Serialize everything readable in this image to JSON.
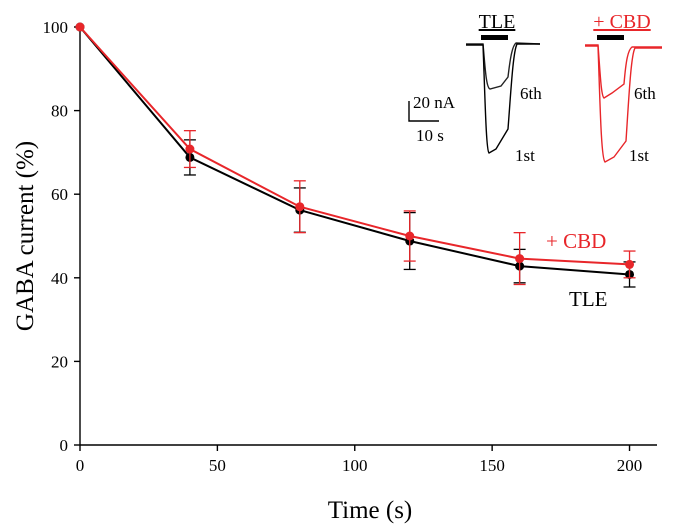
{
  "chart_data": {
    "type": "line",
    "xlabel": "Time (s)",
    "ylabel": "GABA current (%)",
    "xlim": [
      0,
      210
    ],
    "ylim": [
      0,
      100
    ],
    "x_ticks": [
      0,
      50,
      100,
      150,
      200
    ],
    "y_ticks": [
      0,
      20,
      40,
      60,
      80,
      100
    ],
    "x": [
      0,
      40,
      80,
      120,
      160,
      200
    ],
    "series": [
      {
        "name": "TLE",
        "color": "#000000",
        "values": [
          100,
          68.8,
          56.2,
          48.8,
          42.8,
          40.8
        ],
        "error": [
          0,
          4.2,
          5.3,
          6.8,
          4.0,
          3.0
        ],
        "label": "TLE"
      },
      {
        "name": "+ CBD",
        "color": "#e8262a",
        "values": [
          100,
          70.8,
          57.0,
          50.0,
          44.6,
          43.2
        ],
        "error": [
          0,
          4.4,
          6.2,
          6.0,
          6.2,
          3.2
        ],
        "label": "+ CBD"
      }
    ],
    "inset": {
      "tle_title": "TLE",
      "cbd_title": "+ CBD",
      "scale_current": "20 nA",
      "scale_time": "10 s",
      "trace_6th": "6th",
      "trace_1st": "1st"
    }
  }
}
